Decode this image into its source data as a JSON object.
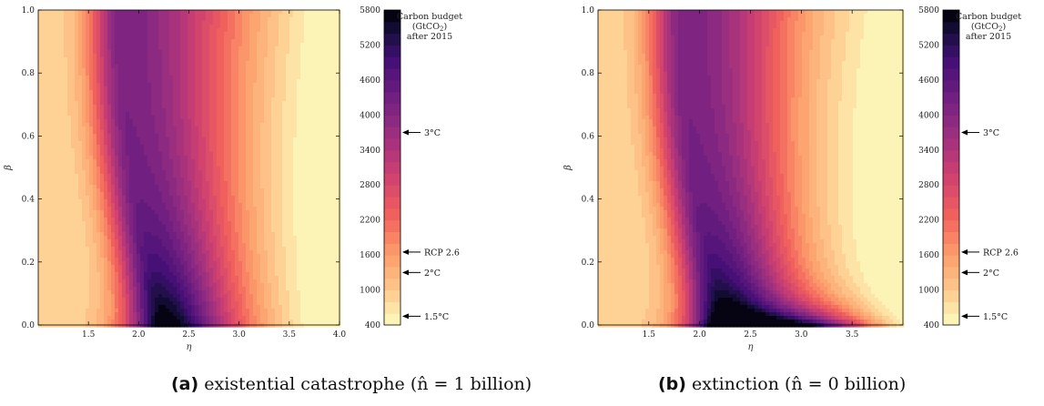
{
  "chart_data": [
    {
      "type": "heatmap",
      "subtype": "filled-contour",
      "xlabel": "η",
      "ylabel": "β",
      "xlim": [
        1.0,
        4.0
      ],
      "ylim": [
        0.0,
        1.0
      ],
      "x_ticks": [
        "1.5",
        "2.0",
        "2.5",
        "3.0",
        "3.5",
        "4.0"
      ],
      "y_ticks": [
        "0.0",
        "0.2",
        "0.4",
        "0.6",
        "0.8",
        "1.0"
      ],
      "colorbar": {
        "title": [
          "Carbon budget",
          "(GtCO",
          "2",
          ")",
          "after 2015"
        ],
        "range": [
          400,
          5800
        ],
        "ticks": [
          "400",
          "1000",
          "1600",
          "2200",
          "2800",
          "3400",
          "4000",
          "4600",
          "5200",
          "5800"
        ],
        "markers": [
          {
            "label": "3°C",
            "value": 3700
          },
          {
            "label": "RCP 2.6",
            "value": 1650
          },
          {
            "label": "2°C",
            "value": 1300
          },
          {
            "label": "1.5°C",
            "value": 550
          }
        ],
        "colormap": "magma-reversed"
      },
      "caption": {
        "tag": "(a)",
        "text": " existential catastrophe (n̂ = 1 billion)"
      }
    },
    {
      "type": "heatmap",
      "subtype": "filled-contour",
      "xlabel": "η",
      "ylabel": "β",
      "xlim": [
        1.0,
        4.0
      ],
      "ylim": [
        0.0,
        1.0
      ],
      "x_ticks": [
        "1.5",
        "2.0",
        "2.5",
        "3.0",
        "3.5"
      ],
      "y_ticks": [
        "0.0",
        "0.2",
        "0.4",
        "0.6",
        "0.8",
        "1.0"
      ],
      "colorbar": {
        "title": [
          "Carbon budget",
          "(GtCO",
          "2",
          ")",
          "after 2015"
        ],
        "range": [
          400,
          5800
        ],
        "ticks": [
          "400",
          "1000",
          "1600",
          "2200",
          "2800",
          "3400",
          "4000",
          "4600",
          "5200",
          "5800"
        ],
        "markers": [
          {
            "label": "3°C",
            "value": 3700
          },
          {
            "label": "RCP 2.6",
            "value": 1650
          },
          {
            "label": "2°C",
            "value": 1300
          },
          {
            "label": "1.5°C",
            "value": 550
          }
        ],
        "colormap": "magma-reversed"
      },
      "caption": {
        "tag": "(b)",
        "text": " extinction (n̂ = 0 billion)"
      }
    }
  ]
}
